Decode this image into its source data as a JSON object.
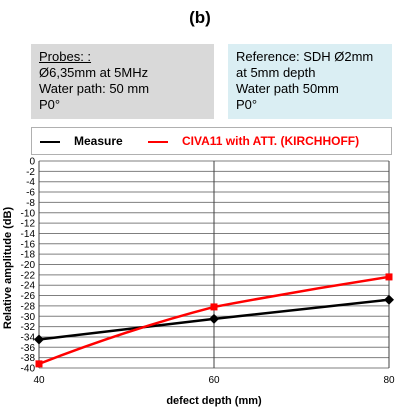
{
  "panel_label": "(b)",
  "probes_box": {
    "heading": "Probes: :",
    "lines": [
      "Ø6,35mm at 5MHz",
      "Water path: 50 mm",
      "P0°"
    ]
  },
  "reference_box": {
    "lines": [
      "Reference:  SDH Ø2mm",
      "at 5mm depth",
      "Water path 50mm",
      "P0°"
    ]
  },
  "chart_data": {
    "type": "line",
    "xlabel": "defect depth (mm)",
    "ylabel": "Relative  amplitude  (dB)",
    "xlim": [
      40,
      80
    ],
    "ylim": [
      -40,
      0
    ],
    "xticks": [
      40,
      60,
      80
    ],
    "yticks": [
      0,
      -2,
      -4,
      -6,
      -8,
      -10,
      -12,
      -14,
      -16,
      -18,
      -20,
      -22,
      -24,
      -26,
      -28,
      -30,
      -32,
      -34,
      -36,
      -38,
      -40
    ],
    "grid": true,
    "legend_position": "top",
    "series": [
      {
        "name": "Measure",
        "color": "#000000",
        "marker": "diamond",
        "x": [
          40,
          60,
          80
        ],
        "y": [
          -34.5,
          -30.5,
          -26.8
        ]
      },
      {
        "name": "CIVA11 with ATT. (KIRCHHOFF)",
        "color": "#ff0000",
        "marker": "square",
        "x": [
          40,
          60,
          80
        ],
        "y": [
          -39.2,
          -28.2,
          -22.4
        ]
      }
    ]
  }
}
